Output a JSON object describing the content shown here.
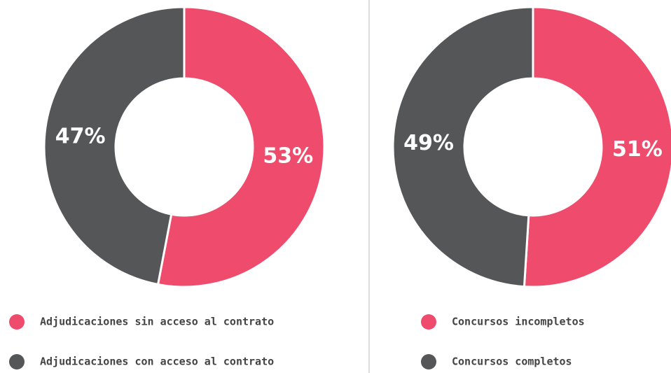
{
  "chart_data": [
    {
      "type": "donut",
      "categories": [
        "Adjudicaciones sin acceso al contrato",
        "Adjudicaciones con acceso al contrato"
      ],
      "values": [
        53,
        47
      ],
      "value_labels": [
        "53%",
        "47%"
      ],
      "colors": [
        "#ef4b6c",
        "#555658"
      ]
    },
    {
      "type": "donut",
      "categories": [
        "Concursos incompletos",
        "Concursos completos"
      ],
      "values": [
        51,
        49
      ],
      "value_labels": [
        "51%",
        "49%"
      ],
      "colors": [
        "#ef4b6c",
        "#555658"
      ]
    }
  ]
}
